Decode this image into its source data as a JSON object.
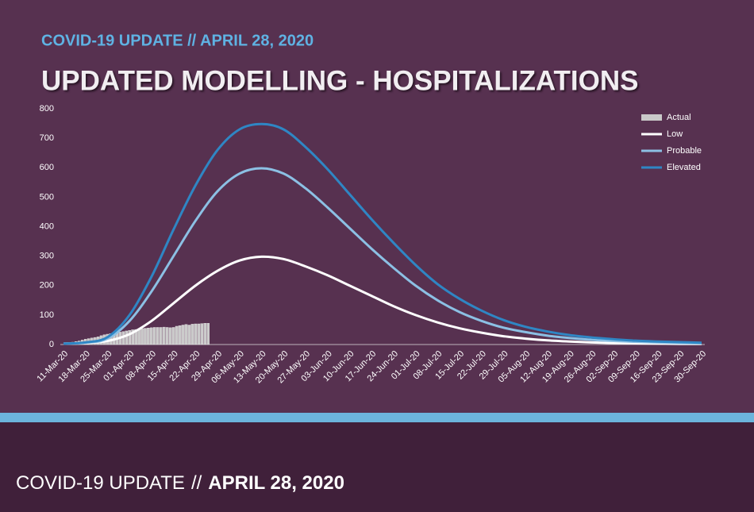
{
  "header": {
    "kicker": "COVID-19 UPDATE // APRIL 28, 2020",
    "title": "UPDATED MODELLING - HOSPITALIZATIONS"
  },
  "footer": {
    "label": "COVID-19 UPDATE",
    "separator": "//",
    "date": "APRIL 28, 2020"
  },
  "chart_data": {
    "type": "line",
    "x": [
      "11-Mar-20",
      "18-Mar-20",
      "25-Mar-20",
      "01-Apr-20",
      "08-Apr-20",
      "15-Apr-20",
      "22-Apr-20",
      "29-Apr-20",
      "06-May-20",
      "13-May-20",
      "20-May-20",
      "27-May-20",
      "03-Jun-20",
      "10-Jun-20",
      "17-Jun-20",
      "24-Jun-20",
      "01-Jul-20",
      "08-Jul-20",
      "15-Jul-20",
      "22-Jul-20",
      "29-Jul-20",
      "05-Aug-20",
      "12-Aug-20",
      "19-Aug-20",
      "26-Aug-20",
      "02-Sep-20",
      "09-Sep-20",
      "16-Sep-20",
      "23-Sep-20",
      "30-Sep-20"
    ],
    "ylim": [
      0,
      800
    ],
    "yticks": [
      0,
      100,
      200,
      300,
      400,
      500,
      600,
      700,
      800
    ],
    "legend": "top-right",
    "series": [
      {
        "name": "Actual",
        "type": "bar",
        "color": "#c9c9c9",
        "x": [
          "14-Mar-20",
          "15-Mar-20",
          "16-Mar-20",
          "17-Mar-20",
          "18-Mar-20",
          "19-Mar-20",
          "20-Mar-20",
          "21-Mar-20",
          "22-Mar-20",
          "23-Mar-20",
          "24-Mar-20",
          "25-Mar-20",
          "26-Mar-20",
          "27-Mar-20",
          "28-Mar-20",
          "29-Mar-20",
          "30-Mar-20",
          "31-Mar-20",
          "01-Apr-20",
          "02-Apr-20",
          "03-Apr-20",
          "04-Apr-20",
          "05-Apr-20",
          "06-Apr-20",
          "07-Apr-20",
          "08-Apr-20",
          "09-Apr-20",
          "10-Apr-20",
          "11-Apr-20",
          "12-Apr-20",
          "13-Apr-20",
          "14-Apr-20",
          "15-Apr-20",
          "16-Apr-20",
          "17-Apr-20",
          "18-Apr-20",
          "19-Apr-20",
          "20-Apr-20",
          "21-Apr-20",
          "22-Apr-20",
          "23-Apr-20",
          "24-Apr-20",
          "25-Apr-20",
          "26-Apr-20"
        ],
        "values": [
          8,
          10,
          12,
          15,
          18,
          20,
          22,
          24,
          26,
          30,
          33,
          35,
          37,
          39,
          40,
          42,
          44,
          46,
          48,
          50,
          51,
          52,
          54,
          55,
          56,
          57,
          58,
          58,
          58,
          59,
          58,
          57,
          58,
          62,
          64,
          66,
          68,
          66,
          69,
          70,
          70,
          71,
          72,
          72
        ]
      },
      {
        "name": "Low",
        "type": "line",
        "color": "#ffffff",
        "values": [
          3,
          5,
          12,
          35,
          80,
          140,
          200,
          250,
          285,
          298,
          290,
          265,
          235,
          200,
          165,
          130,
          100,
          75,
          55,
          40,
          28,
          20,
          14,
          10,
          7,
          5,
          4,
          3,
          2,
          2
        ]
      },
      {
        "name": "Probable",
        "type": "line",
        "color": "#8cc0e4",
        "values": [
          3,
          6,
          20,
          80,
          180,
          300,
          420,
          520,
          580,
          598,
          580,
          530,
          465,
          395,
          325,
          260,
          200,
          150,
          110,
          80,
          57,
          42,
          30,
          22,
          16,
          12,
          9,
          7,
          5,
          4
        ]
      },
      {
        "name": "Elevated",
        "type": "line",
        "color": "#2f86c4",
        "values": [
          3,
          7,
          25,
          100,
          230,
          390,
          540,
          660,
          730,
          748,
          730,
          670,
          595,
          510,
          425,
          345,
          270,
          205,
          155,
          115,
          83,
          60,
          44,
          32,
          24,
          18,
          13,
          10,
          8,
          6
        ]
      }
    ]
  }
}
